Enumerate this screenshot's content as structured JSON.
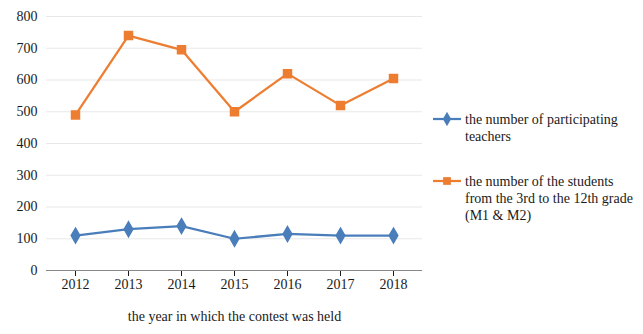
{
  "chart_data": {
    "type": "line",
    "x_label": "the year in which the contest was held",
    "categories": [
      "2012",
      "2013",
      "2014",
      "2015",
      "2016",
      "2017",
      "2018"
    ],
    "series": [
      {
        "name": "the number of participating teachers",
        "color": "#4a7ebb",
        "marker": "diamond",
        "values": [
          110,
          130,
          140,
          100,
          115,
          110,
          110
        ]
      },
      {
        "name": "the number of the students from the 3rd to the 12th grade (M1 & M2)",
        "color": "#ed7d31",
        "marker": "square",
        "values": [
          490,
          740,
          695,
          500,
          620,
          520,
          605
        ]
      }
    ],
    "ylim": [
      0,
      800
    ],
    "yticks": [
      0,
      100,
      200,
      300,
      400,
      500,
      600,
      700,
      800
    ],
    "grid": true,
    "legend": "right"
  }
}
